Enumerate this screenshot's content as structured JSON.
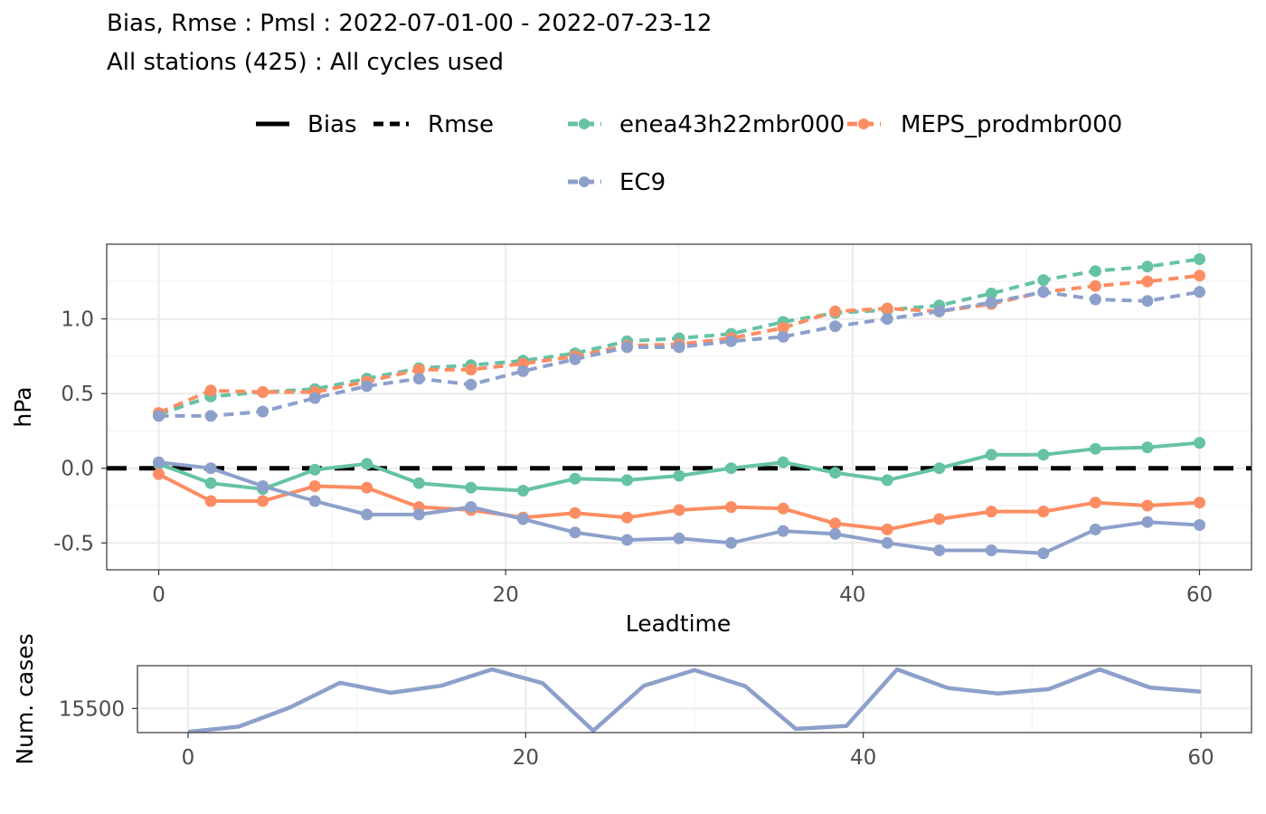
{
  "title_lines": [
    "Bias, Rmse : Pmsl : 2022-07-01-00 - 2022-07-23-12",
    "All stations (425) : All cycles used"
  ],
  "legend": {
    "scores": [
      {
        "label": "Bias",
        "dash": "solid"
      },
      {
        "label": "Rmse",
        "dash": "dashed"
      }
    ],
    "models": [
      {
        "label": "enea43h22mbr000",
        "color": "#66c2a5"
      },
      {
        "label": "MEPS_prodmbr000",
        "color": "#fc8d62"
      },
      {
        "label": "EC9",
        "color": "#8da0cb"
      }
    ]
  },
  "chart_data": [
    {
      "type": "line",
      "xlabel": "Leadtime",
      "ylabel": "hPa",
      "xlim": [
        -3,
        63
      ],
      "ylim": [
        -0.68,
        1.5
      ],
      "x_ticks": [
        0,
        20,
        40,
        60
      ],
      "y_ticks": [
        -0.5,
        0.0,
        0.5,
        1.0
      ],
      "y_tick_labels": [
        "-0.5",
        "0.0",
        "0.5",
        "1.0"
      ],
      "x": [
        0,
        3,
        6,
        9,
        12,
        15,
        18,
        21,
        24,
        27,
        30,
        33,
        36,
        39,
        42,
        45,
        48,
        51,
        54,
        57,
        60
      ],
      "zero_line": true,
      "grid": true,
      "series": [
        {
          "name": "enea43h22mbr000",
          "score": "Rmse",
          "color": "#66c2a5",
          "values": [
            0.36,
            0.48,
            0.51,
            0.53,
            0.6,
            0.67,
            0.69,
            0.72,
            0.77,
            0.85,
            0.87,
            0.9,
            0.98,
            1.04,
            1.06,
            1.09,
            1.17,
            1.26,
            1.32,
            1.35,
            1.4
          ]
        },
        {
          "name": "MEPS_prodmbr000",
          "score": "Rmse",
          "color": "#fc8d62",
          "values": [
            0.37,
            0.52,
            0.51,
            0.51,
            0.58,
            0.66,
            0.66,
            0.7,
            0.75,
            0.82,
            0.83,
            0.87,
            0.94,
            1.05,
            1.07,
            1.05,
            1.1,
            1.18,
            1.22,
            1.25,
            1.29
          ]
        },
        {
          "name": "EC9",
          "score": "Rmse",
          "color": "#8da0cb",
          "values": [
            0.35,
            0.35,
            0.38,
            0.47,
            0.55,
            0.6,
            0.56,
            0.65,
            0.73,
            0.81,
            0.81,
            0.85,
            0.88,
            0.95,
            1.0,
            1.05,
            1.11,
            1.18,
            1.13,
            1.12,
            1.18
          ]
        },
        {
          "name": "enea43h22mbr000",
          "score": "Bias",
          "color": "#66c2a5",
          "values": [
            0.03,
            -0.1,
            -0.14,
            -0.01,
            0.03,
            -0.1,
            -0.13,
            -0.15,
            -0.07,
            -0.08,
            -0.05,
            0.0,
            0.04,
            -0.03,
            -0.08,
            0.0,
            0.09,
            0.09,
            0.13,
            0.14,
            0.17
          ]
        },
        {
          "name": "MEPS_prodmbr000",
          "score": "Bias",
          "color": "#fc8d62",
          "values": [
            -0.04,
            -0.22,
            -0.22,
            -0.12,
            -0.13,
            -0.26,
            -0.28,
            -0.33,
            -0.3,
            -0.33,
            -0.28,
            -0.26,
            -0.27,
            -0.37,
            -0.41,
            -0.34,
            -0.29,
            -0.29,
            -0.23,
            -0.25,
            -0.23
          ]
        },
        {
          "name": "EC9",
          "score": "Bias",
          "color": "#8da0cb",
          "values": [
            0.04,
            0.0,
            -0.12,
            -0.22,
            -0.31,
            -0.31,
            -0.26,
            -0.34,
            -0.43,
            -0.48,
            -0.47,
            -0.5,
            -0.42,
            -0.44,
            -0.5,
            -0.55,
            -0.55,
            -0.57,
            -0.41,
            -0.36,
            -0.38
          ]
        }
      ]
    },
    {
      "type": "line",
      "xlabel": "",
      "ylabel": "Num. cases",
      "xlim": [
        -3,
        63
      ],
      "ylim": [
        15435,
        15615
      ],
      "x_ticks": [
        0,
        20,
        40,
        60
      ],
      "y_ticks": [
        15500
      ],
      "y_tick_labels": [
        "15500"
      ],
      "x": [
        0,
        3,
        6,
        9,
        12,
        15,
        18,
        21,
        24,
        27,
        30,
        33,
        36,
        39,
        42,
        45,
        48,
        51,
        54,
        57,
        60
      ],
      "grid": true,
      "series": [
        {
          "name": "EC9",
          "color": "#8da0cb",
          "values": [
            15437,
            15451,
            15502,
            15569,
            15542,
            15561,
            15605,
            15568,
            15440,
            15561,
            15603,
            15560,
            15445,
            15453,
            15605,
            15555,
            15540,
            15552,
            15605,
            15556,
            15545
          ]
        }
      ]
    }
  ]
}
